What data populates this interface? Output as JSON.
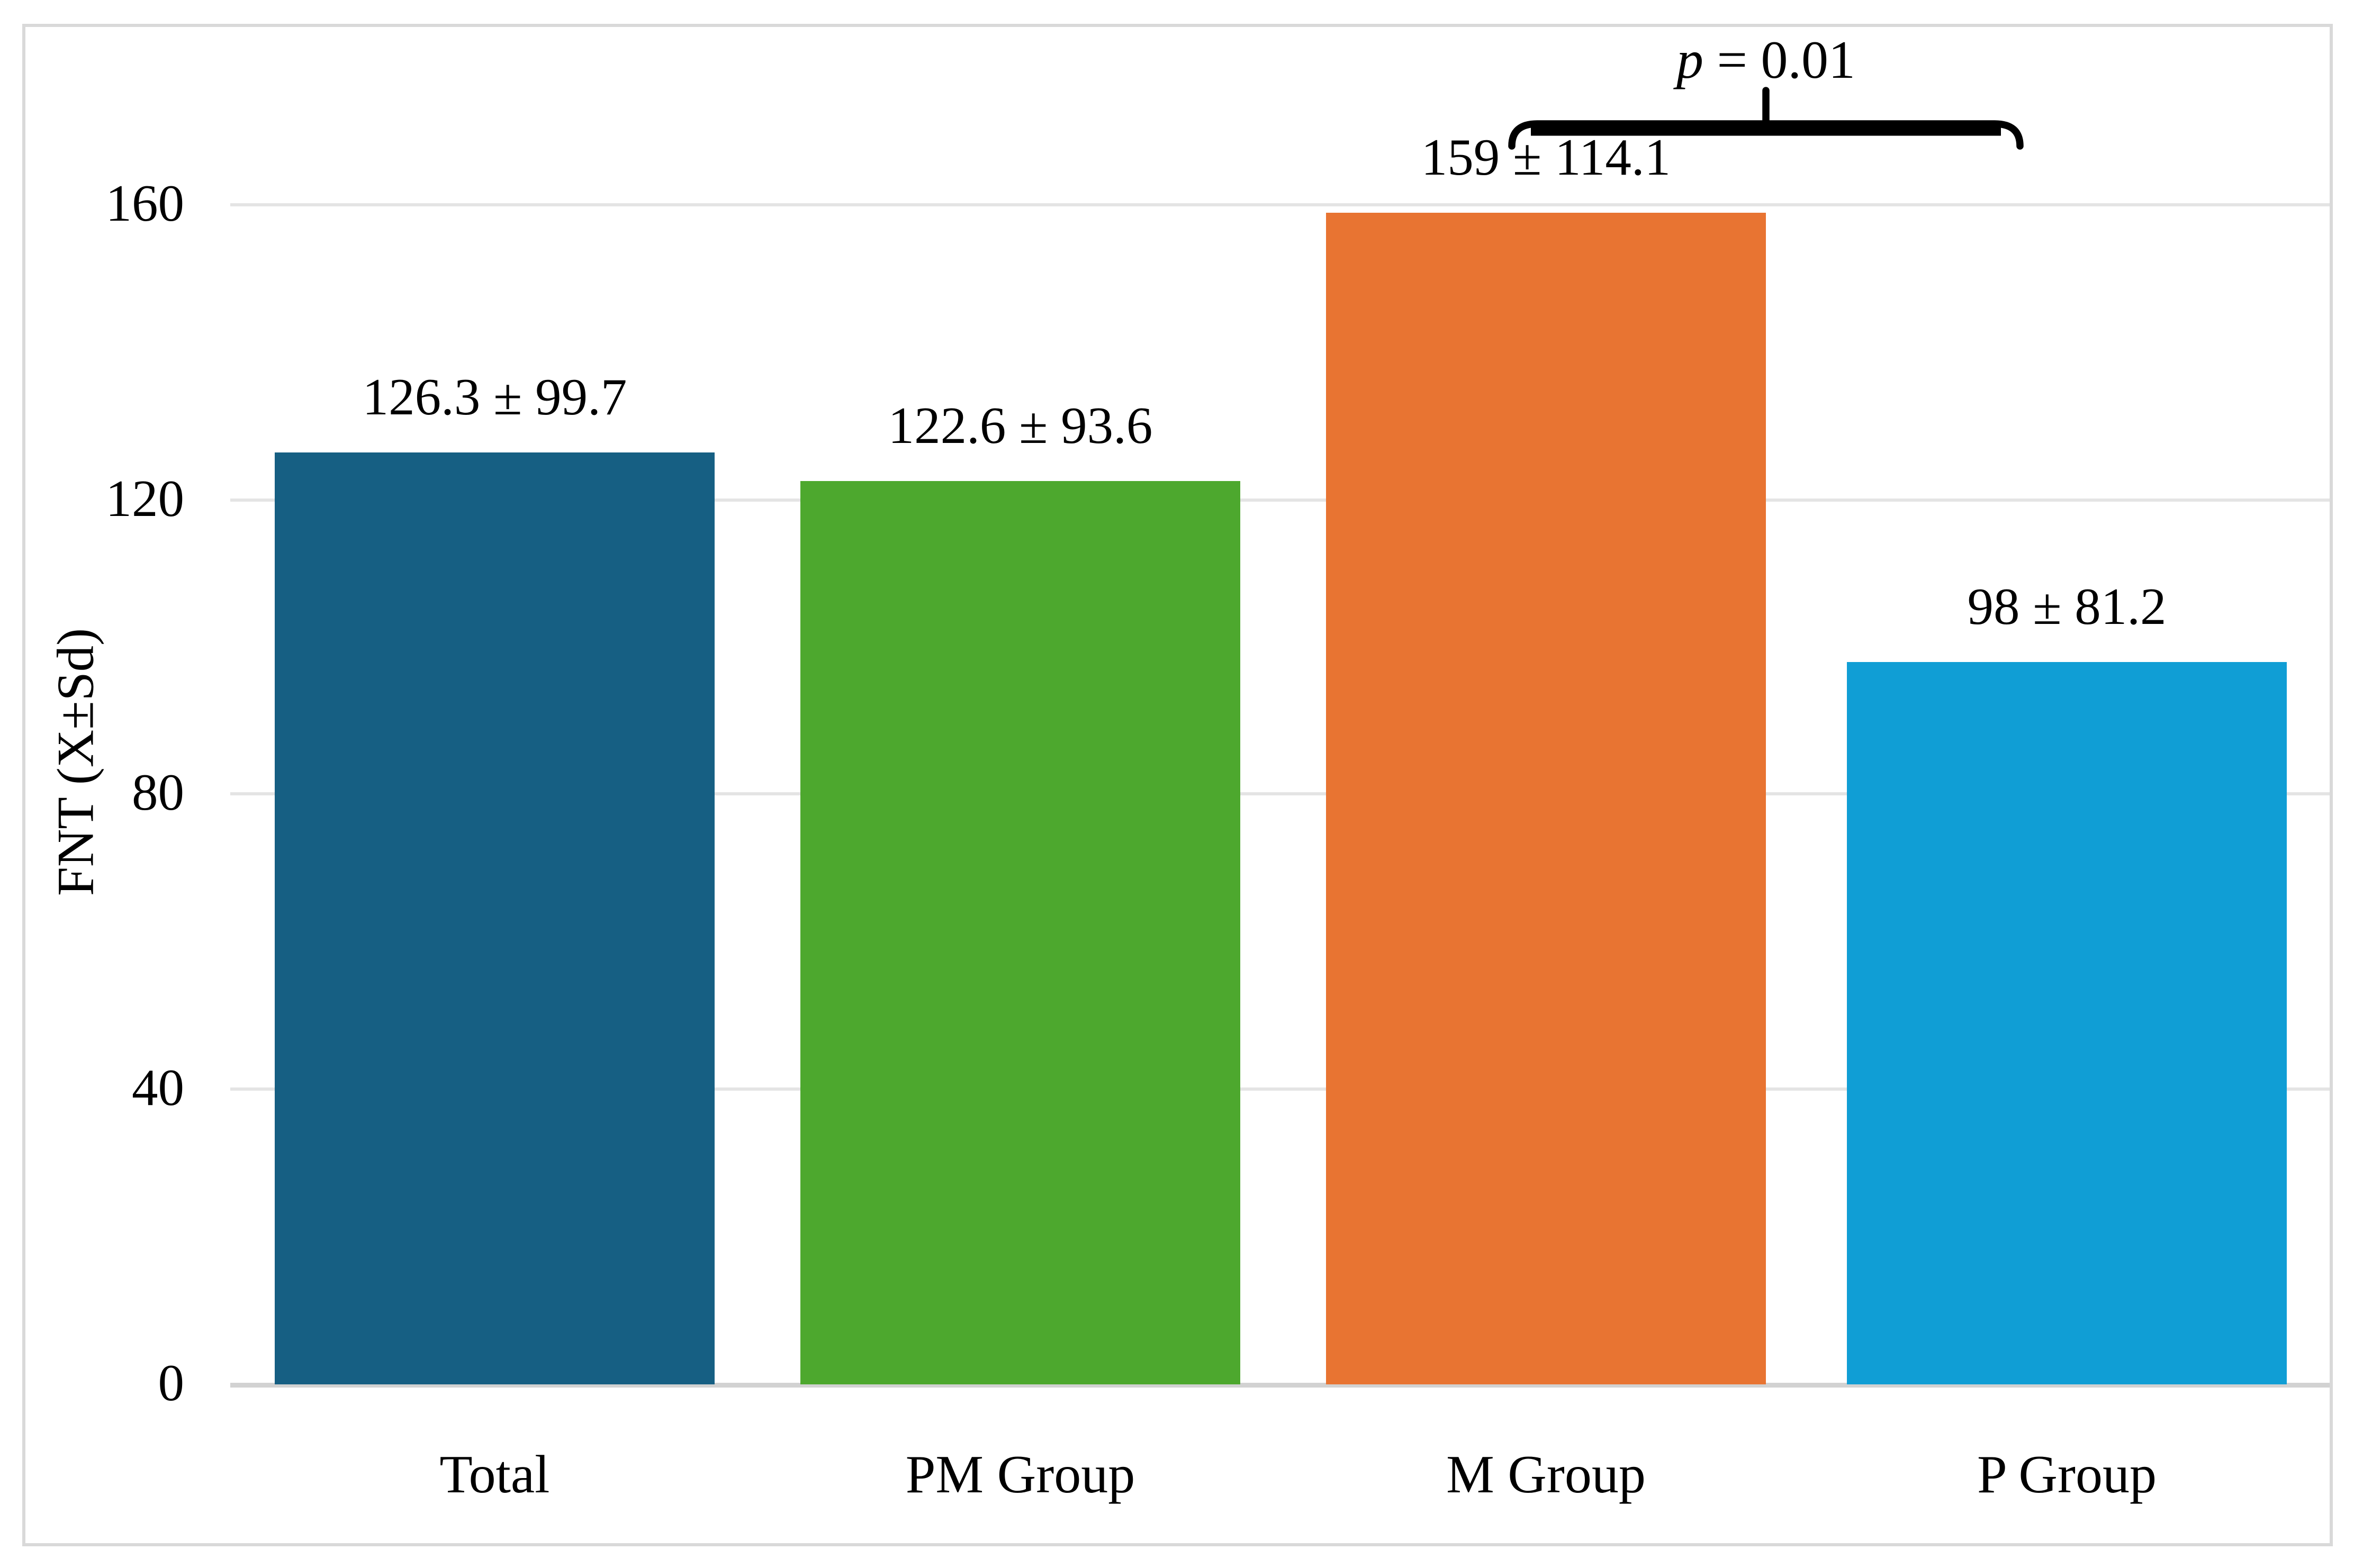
{
  "figure": {
    "background": "#ffffff",
    "border_color": "#d9d9d9"
  },
  "chart_data": {
    "type": "bar",
    "title": "",
    "categories": [
      "Total",
      "PM Group",
      "M Group",
      "P Group"
    ],
    "values": [
      126.3,
      122.6,
      159,
      98
    ],
    "std_devs": [
      99.7,
      93.6,
      114.1,
      81.2
    ],
    "bar_labels": [
      "126.3 ± 99.7",
      "122.6 ± 93.6",
      "159 ± 114.1",
      "98 ± 81.2"
    ],
    "bar_colors": [
      "#165f83",
      "#4da82e",
      "#e87432",
      "#109ed5"
    ],
    "xlabel": "",
    "ylabel": "FNT (X±Sd)",
    "yticks": [
      "0",
      "40",
      "80",
      "120",
      "160"
    ],
    "ytick_values": [
      0,
      40,
      80,
      120,
      160
    ],
    "ylim": [
      0,
      183
    ],
    "grid": true,
    "legend_position": "none",
    "gridline_color": "#e4e4e4",
    "axis_line_color": "#d2d2d2",
    "annotation": {
      "text": "p = 0.01",
      "p_symbol": "p",
      "p_rest": " = 0.01",
      "spans": [
        "M Group",
        "P Group"
      ]
    }
  }
}
